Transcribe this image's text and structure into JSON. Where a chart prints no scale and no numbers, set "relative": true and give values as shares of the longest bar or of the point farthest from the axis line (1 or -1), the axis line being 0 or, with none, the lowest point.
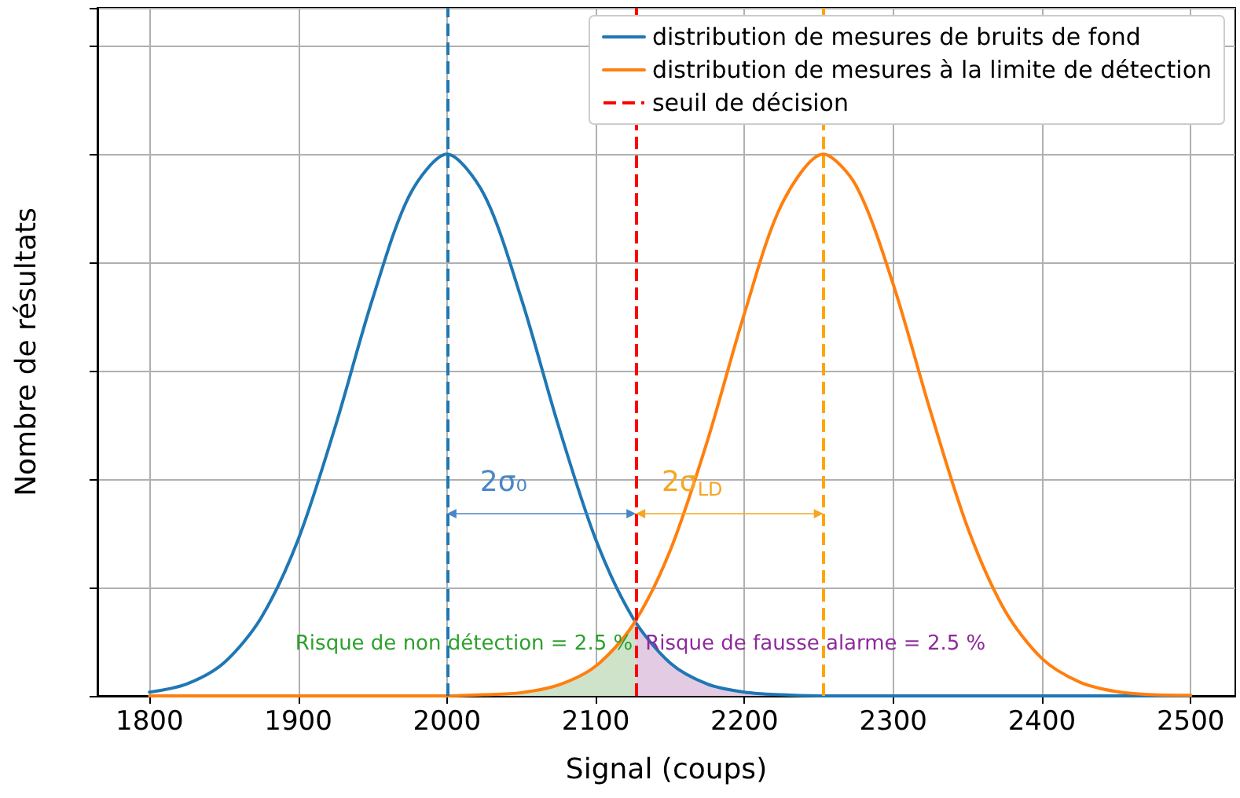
{
  "chart_data": {
    "type": "line",
    "relative": true,
    "xlabel": "Signal (coups)",
    "ylabel": "Nombre de résultats",
    "xlim": [
      1765,
      2530
    ],
    "xticks": [
      1800,
      1900,
      2000,
      2100,
      2200,
      2300,
      2400,
      2500
    ],
    "series": [
      {
        "name": "distribution de mesures de bruits de fond",
        "color": "#1f77b4",
        "x": [
          1800,
          1825,
          1850,
          1875,
          1900,
          1925,
          1950,
          1975,
          2000,
          2025,
          2050,
          2075,
          2100,
          2125,
          2150,
          2175,
          2200,
          2225,
          2250,
          2300,
          2400,
          2500
        ],
        "values": [
          0.007,
          0.022,
          0.061,
          0.144,
          0.289,
          0.498,
          0.733,
          0.925,
          1,
          0.925,
          0.733,
          0.498,
          0.289,
          0.144,
          0.061,
          0.022,
          0.007,
          0.002,
          0,
          0,
          0,
          0
        ]
      },
      {
        "name": "distribution de mesures à la limite de détection",
        "color": "#ff7f0e",
        "x": [
          1800,
          1900,
          2000,
          2025,
          2050,
          2075,
          2100,
          2125,
          2150,
          2175,
          2200,
          2225,
          2253,
          2275,
          2300,
          2325,
          2350,
          2375,
          2400,
          2425,
          2450,
          2475,
          2500
        ],
        "values": [
          0,
          0,
          0,
          0.002,
          0.006,
          0.02,
          0.055,
          0.131,
          0.268,
          0.47,
          0.706,
          0.907,
          1,
          0.942,
          0.76,
          0.526,
          0.311,
          0.158,
          0.069,
          0.026,
          0.008,
          0.002,
          0.001
        ]
      },
      {
        "type": "area",
        "color": "#cfe3cb",
        "x": [
          2025,
          2050,
          2075,
          2100,
          2125,
          2127
        ],
        "values": [
          0.002,
          0.006,
          0.02,
          0.055,
          0.131,
          0.14
        ]
      },
      {
        "type": "area",
        "color": "#e2cbe3",
        "x": [
          2127,
          2150,
          2175,
          2200,
          2225
        ],
        "values": [
          0.135,
          0.061,
          0.022,
          0.007,
          0.002
        ]
      }
    ],
    "ref_lines": [
      {
        "axis": "x",
        "value": 2000,
        "color": "#1f77b4",
        "line_style": "dashed"
      },
      {
        "axis": "x",
        "value": 2127,
        "label": "seuil de décision",
        "color": "#ff0000",
        "line_style": "dashed"
      },
      {
        "axis": "x",
        "value": 2253,
        "color": "#ffa500",
        "line_style": "dashed"
      }
    ],
    "annotations": [
      "2σ₀",
      "2σ$_{LD}$",
      "Risque de non détection = 2.5 %",
      "Risque de fausse alarme = 2.5 %"
    ],
    "grid": true,
    "legend": "top right",
    "marker": "none",
    "line_style": "solid",
    "tick_labels": "x"
  }
}
